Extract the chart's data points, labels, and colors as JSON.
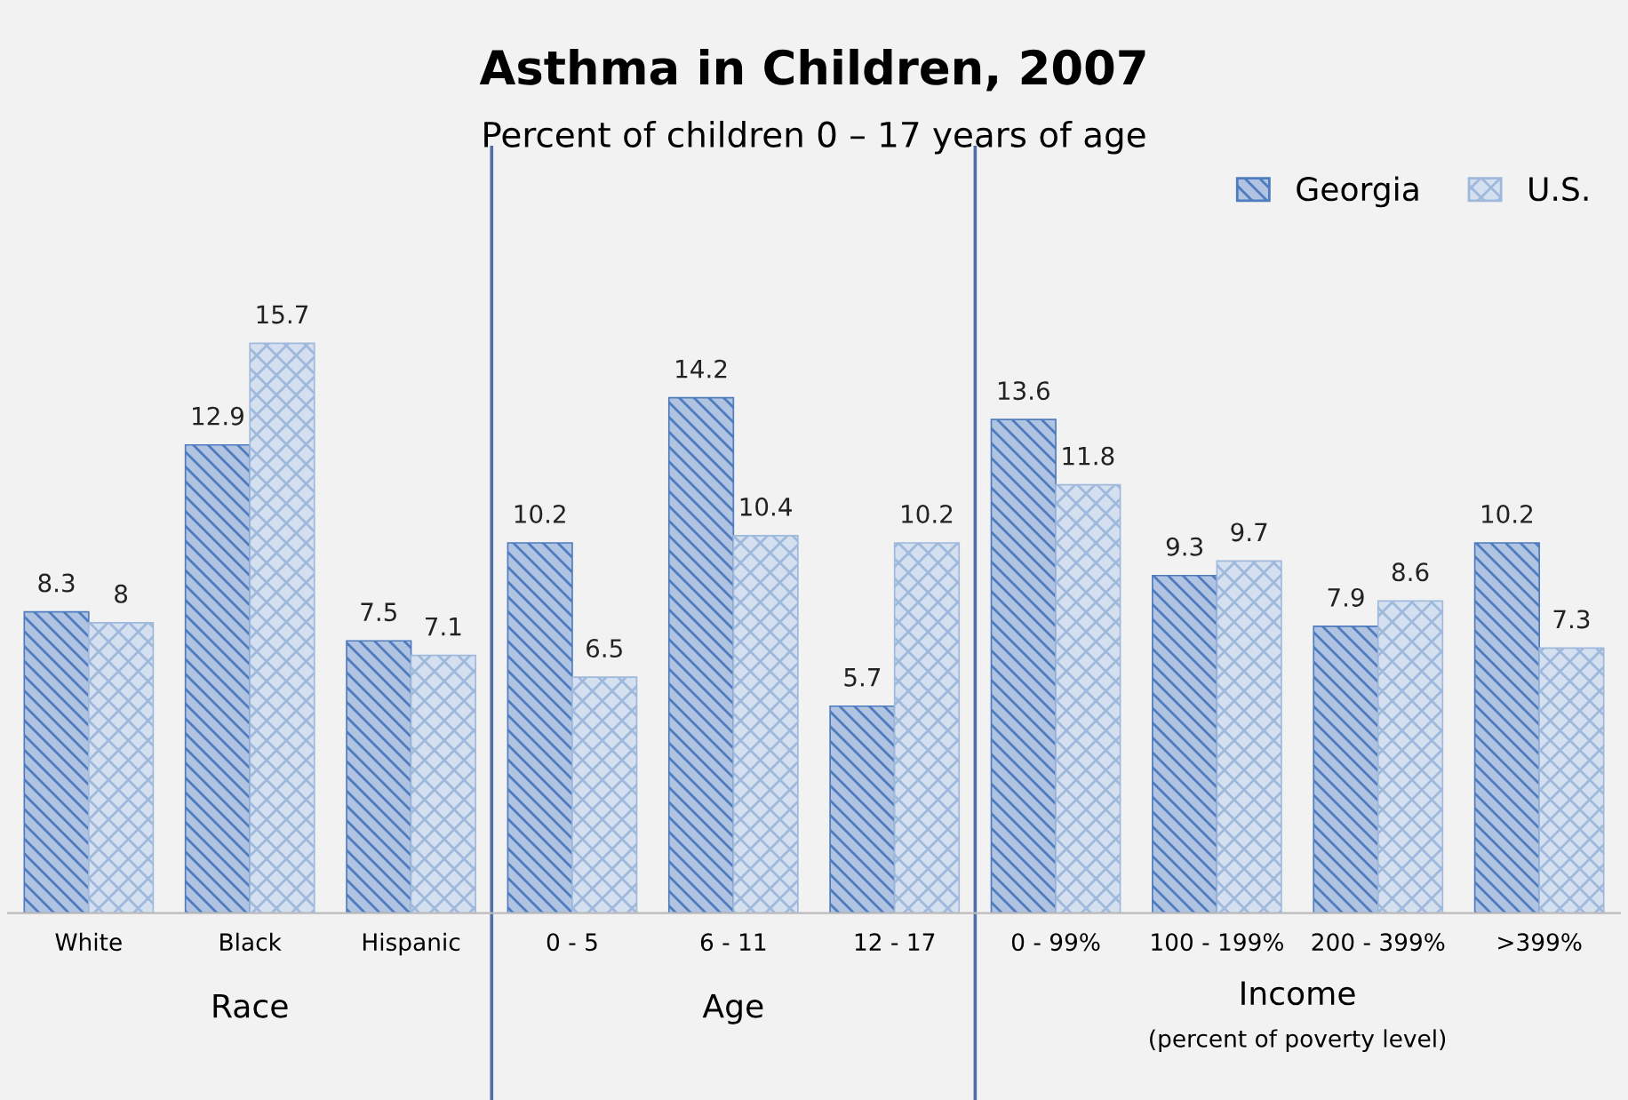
{
  "chart_data": {
    "type": "bar",
    "title": "Asthma in Children, 2007",
    "subtitle": "Percent of children 0 – 17 years of age",
    "categories": [
      "White",
      "Black",
      "Hispanic",
      "0 - 5",
      "6 - 11",
      "12 - 17",
      "0 - 99%",
      "100 - 199%",
      "200 - 399%",
      ">399%"
    ],
    "series": [
      {
        "name": "Georgia",
        "color": "#4f7bbf",
        "values": [
          8.3,
          12.9,
          7.5,
          10.2,
          14.2,
          5.7,
          13.6,
          9.3,
          7.9,
          10.2
        ]
      },
      {
        "name": "U.S.",
        "color": "#9fb9dc",
        "values": [
          8,
          15.7,
          7.1,
          6.5,
          10.4,
          10.2,
          11.8,
          9.7,
          8.6,
          7.3
        ]
      }
    ],
    "annotations": [
      "Race",
      "Age",
      "Income",
      "(percent of poverty level)"
    ],
    "data_labels": true,
    "legend": "top right",
    "grid": false,
    "tick_labels": "x"
  }
}
